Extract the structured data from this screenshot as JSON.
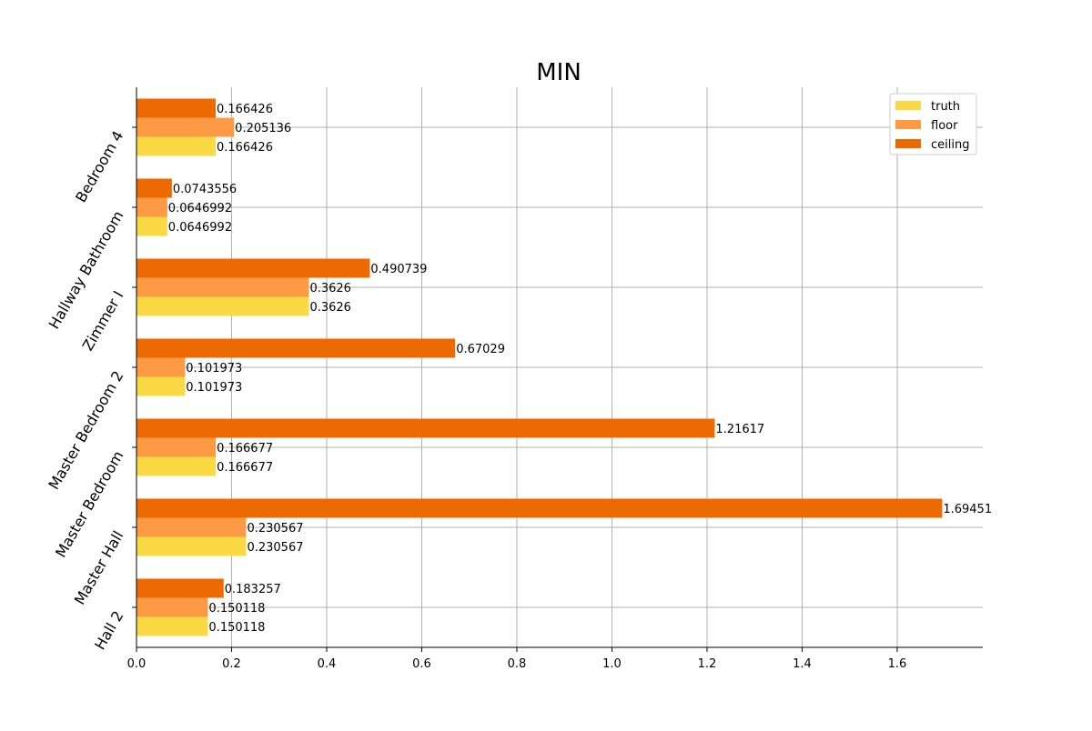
{
  "chart_data": {
    "type": "bar",
    "orientation": "horizontal",
    "title": "MIN",
    "xlabel": "",
    "ylabel": "",
    "categories": [
      "Hall 2",
      "Master Hall",
      "Master Bedroom",
      "Master Bedroom 2",
      "Zimmer I",
      "Hallway Bathroom",
      "Bedroom 4"
    ],
    "series": [
      {
        "name": "truth",
        "color": "#f9da44",
        "values": [
          0.150118,
          0.230567,
          0.166677,
          0.101973,
          0.3626,
          0.0646992,
          0.166426
        ],
        "labels": [
          "0.150118",
          "0.230567",
          "0.166677",
          "0.101973",
          "0.3626",
          "0.0646992",
          "0.166426"
        ]
      },
      {
        "name": "floor",
        "color": "#fd9a45",
        "values": [
          0.150118,
          0.230567,
          0.166677,
          0.101973,
          0.3626,
          0.0646992,
          0.205136
        ],
        "labels": [
          "0.150118",
          "0.230567",
          "0.166677",
          "0.101973",
          "0.3626",
          "0.0646992",
          "0.205136"
        ]
      },
      {
        "name": "ceiling",
        "color": "#ed6a02",
        "values": [
          0.183257,
          1.69451,
          1.21617,
          0.67029,
          0.490739,
          0.0743556,
          0.166426
        ],
        "labels": [
          "0.183257",
          "1.69451",
          "1.21617",
          "0.67029",
          "0.490739",
          "0.0743556",
          "0.166426"
        ]
      }
    ],
    "xlim": [
      0,
      1.78
    ],
    "xticks": [
      "0.0",
      "0.2",
      "0.4",
      "0.6",
      "0.8",
      "1.0",
      "1.2",
      "1.4",
      "1.6"
    ],
    "grid": true,
    "legend_position": "top-right"
  }
}
